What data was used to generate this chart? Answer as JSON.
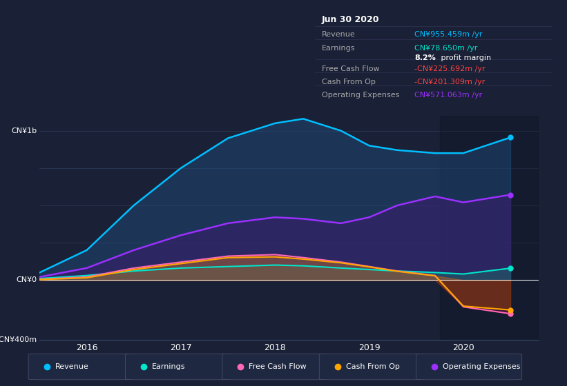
{
  "background_color": "#1a2035",
  "plot_bg_color": "#1a2035",
  "years": [
    2015.5,
    2016.0,
    2016.5,
    2017.0,
    2017.5,
    2018.0,
    2018.3,
    2018.7,
    2019.0,
    2019.3,
    2019.7,
    2020.0,
    2020.5
  ],
  "revenue": [
    50,
    200,
    500,
    750,
    950,
    1050,
    1080,
    1000,
    900,
    870,
    850,
    850,
    955
  ],
  "earnings": [
    10,
    30,
    60,
    80,
    90,
    100,
    95,
    80,
    70,
    60,
    50,
    40,
    79
  ],
  "free_cash_flow": [
    5,
    20,
    80,
    120,
    160,
    170,
    150,
    120,
    90,
    60,
    30,
    -180,
    -226
  ],
  "cash_from_op": [
    3,
    15,
    70,
    110,
    150,
    155,
    140,
    115,
    88,
    58,
    28,
    -175,
    -201
  ],
  "op_expenses": [
    20,
    80,
    200,
    300,
    380,
    420,
    410,
    380,
    420,
    500,
    560,
    520,
    571
  ],
  "ylim": [
    -400,
    1100
  ],
  "xlim": [
    2015.5,
    2020.8
  ],
  "xtick_pos": [
    2016,
    2017,
    2018,
    2019,
    2020
  ],
  "xtick_labels": [
    "2016",
    "2017",
    "2018",
    "2019",
    "2020"
  ],
  "color_revenue": "#00bfff",
  "color_earnings": "#00e5cc",
  "color_free_cash_flow": "#ff69b4",
  "color_cash_from_op": "#ffa500",
  "color_op_expenses": "#9b30ff",
  "fill_revenue": "#1e4a7a",
  "fill_op_expenses": "#3d1a6e",
  "fill_fcf_pos": "#7a3060",
  "fill_fcf_neg": "#6a1040",
  "fill_cop_pos": "#b8860b",
  "fill_cop_neg": "#8b4500",
  "fill_earnings": "#1e6a6a",
  "legend_items": [
    {
      "color": "#00bfff",
      "label": "Revenue"
    },
    {
      "color": "#00e5cc",
      "label": "Earnings"
    },
    {
      "color": "#ff69b4",
      "label": "Free Cash Flow"
    },
    {
      "color": "#ffa500",
      "label": "Cash From Op"
    },
    {
      "color": "#9b30ff",
      "label": "Operating Expenses"
    }
  ],
  "info_box": {
    "title": "Jun 30 2020",
    "rows": [
      {
        "label": "Revenue",
        "value": "CN¥955.459m /yr",
        "value_color": "#00bfff",
        "is_margin": false
      },
      {
        "label": "Earnings",
        "value": "CN¥78.650m /yr",
        "value_color": "#00e5cc",
        "is_margin": false
      },
      {
        "label": "",
        "value": "8.2% profit margin",
        "value_color": "#ffffff",
        "is_margin": true
      },
      {
        "label": "Free Cash Flow",
        "value": "-CN¥225.692m /yr",
        "value_color": "#ff4444",
        "is_margin": false
      },
      {
        "label": "Cash From Op",
        "value": "-CN¥201.309m /yr",
        "value_color": "#ff4444",
        "is_margin": false
      },
      {
        "label": "Operating Expenses",
        "value": "CN¥571.063m /yr",
        "value_color": "#9b30ff",
        "is_margin": false
      }
    ]
  }
}
